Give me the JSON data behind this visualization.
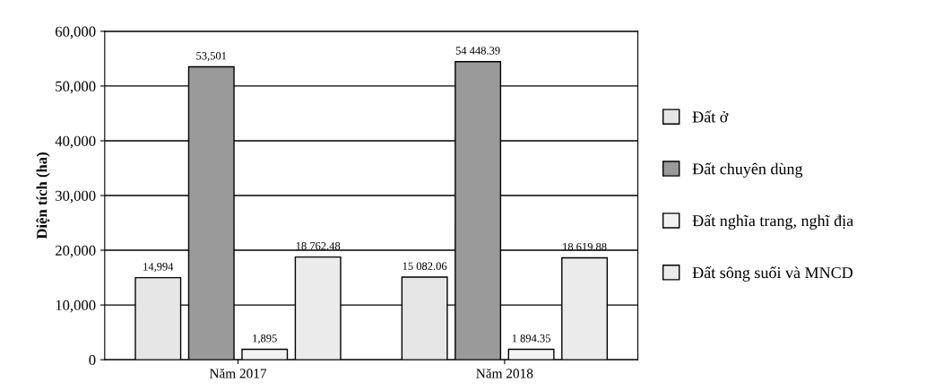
{
  "chart_data": {
    "type": "bar",
    "ylabel": "Diện tích (ha)",
    "categories": [
      "Năm 2017",
      "Năm 2018"
    ],
    "series": [
      {
        "name": "Đất ở",
        "color": "#e6e6e6",
        "values": [
          14994,
          15082.06
        ],
        "value_labels": [
          "14,994",
          "15 082.06"
        ]
      },
      {
        "name": "Đất chuyên dùng",
        "color": "#9a9a9a",
        "values": [
          53501,
          54448.39
        ],
        "value_labels": [
          "53,501",
          "54 448.39"
        ]
      },
      {
        "name": "Đất nghĩa trang, nghĩ địa",
        "color": "#f2f2f2",
        "values": [
          1895,
          1894.35
        ],
        "value_labels": [
          "1,895",
          "1 894.35"
        ]
      },
      {
        "name": "Đất sông suối và MNCD",
        "color": "#ebebeb",
        "values": [
          18762.48,
          18619.88
        ],
        "value_labels": [
          "18 762.48",
          "18 619.88"
        ]
      }
    ],
    "ylim": [
      0,
      60000
    ],
    "yticks": [
      {
        "value": 0,
        "label": "0"
      },
      {
        "value": 10000,
        "label": "10,000"
      },
      {
        "value": 20000,
        "label": "20,000"
      },
      {
        "value": 30000,
        "label": "30,000"
      },
      {
        "value": 40000,
        "label": "40,000"
      },
      {
        "value": 50000,
        "label": "50,000"
      },
      {
        "value": 60000,
        "label": "60,000"
      }
    ],
    "grid": "y",
    "legend": "right"
  }
}
